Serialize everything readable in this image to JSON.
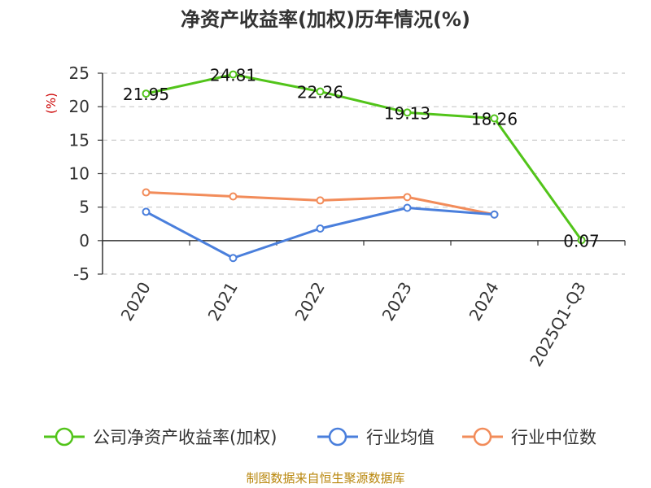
{
  "chart_data": {
    "type": "line",
    "title": "净资产收益率(加权)历年情况(%)",
    "ylabel": "(%)",
    "categories": [
      "2020",
      "2021",
      "2022",
      "2023",
      "2024",
      "2025Q1-Q3"
    ],
    "ylim": [
      -5,
      25
    ],
    "yticks": [
      "25",
      "20",
      "15",
      "10",
      "5",
      "0",
      "-5"
    ],
    "grid": true,
    "legend_position": "bottom",
    "series": [
      {
        "name": "公司净资产收益率(加权)",
        "color": "#52c41a",
        "values": [
          21.95,
          24.81,
          22.26,
          19.13,
          18.26,
          0.07
        ],
        "labels": [
          "21.95",
          "24.81",
          "22.26",
          "19.13",
          "18.26",
          "0.07"
        ]
      },
      {
        "name": "行业均值",
        "color": "#4a7fdc",
        "values": [
          4.3,
          -2.6,
          1.8,
          4.9,
          3.9,
          null
        ]
      },
      {
        "name": "行业中位数",
        "color": "#f28c5a",
        "values": [
          7.2,
          6.6,
          6.0,
          6.5,
          3.9,
          null
        ]
      }
    ],
    "source": "制图数据来自恒生聚源数据库"
  }
}
